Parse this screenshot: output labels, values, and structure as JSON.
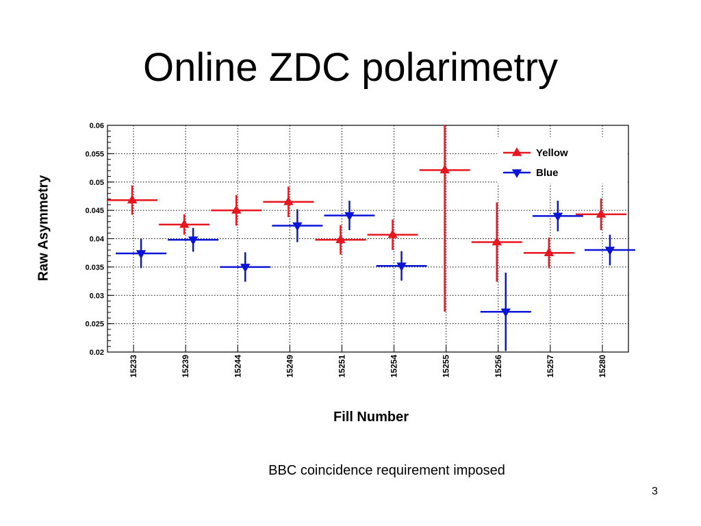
{
  "slide": {
    "title": "Online ZDC polarimetry",
    "caption": "BBC coincidence requirement imposed",
    "page_number": "3"
  },
  "chart_data": {
    "type": "scatter",
    "xlabel": "Fill Number",
    "ylabel": "Raw Asymmetry",
    "categories": [
      "15233",
      "15239",
      "15244",
      "15249",
      "15251",
      "15254",
      "15255",
      "15256",
      "15257",
      "15280"
    ],
    "ylim": [
      0.02,
      0.06
    ],
    "yticks": [
      "0.02",
      "0.025",
      "0.03",
      "0.035",
      "0.04",
      "0.045",
      "0.05",
      "0.055",
      "0.06"
    ],
    "grid": true,
    "legend_position": "top-right",
    "series": [
      {
        "name": "Yellow",
        "color": "#e8141e",
        "marker": "triangle-up",
        "values": [
          0.0468,
          0.0425,
          0.045,
          0.0465,
          0.0398,
          0.0407,
          0.0521,
          0.0394,
          0.0375,
          0.0443
        ],
        "errors": [
          0.0026,
          0.0018,
          0.0027,
          0.0027,
          0.0026,
          0.0027,
          0.025,
          0.007,
          0.0027,
          0.0028
        ]
      },
      {
        "name": "Blue",
        "color": "#0a14d8",
        "marker": "triangle-down",
        "values": [
          0.0374,
          0.0398,
          0.035,
          0.0423,
          0.0441,
          0.0352,
          null,
          0.0271,
          0.044,
          0.038
        ],
        "errors": [
          0.0026,
          0.0021,
          0.0026,
          0.0029,
          0.0026,
          0.0026,
          null,
          0.0069,
          0.0027,
          0.0027
        ]
      }
    ]
  }
}
